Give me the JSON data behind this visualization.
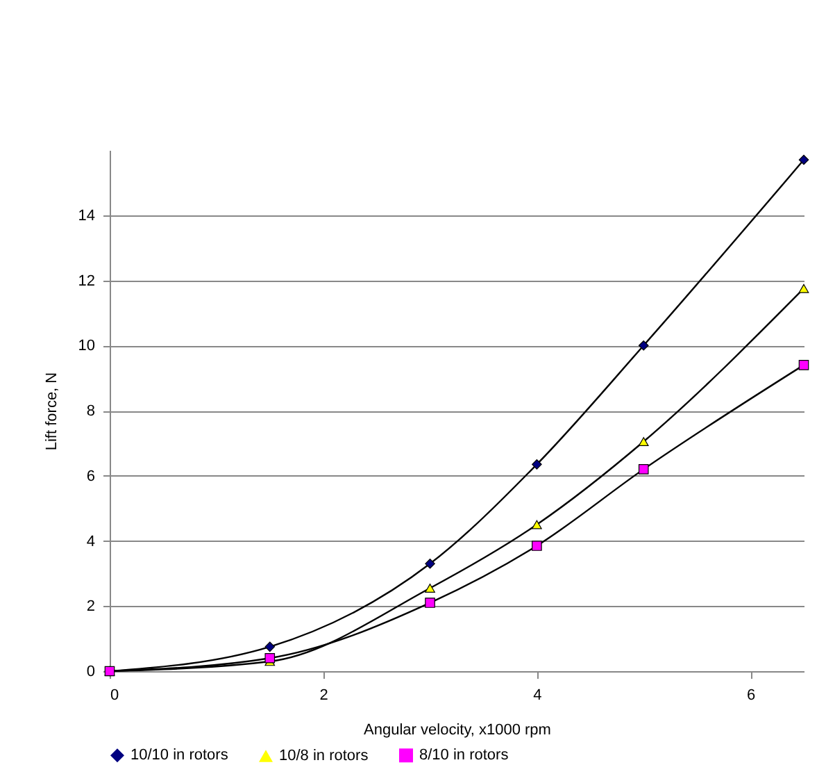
{
  "chart_data": {
    "type": "line",
    "xlabel": "Angular velocity, x1000 rpm",
    "ylabel": "Lift force, N",
    "xlim": [
      0,
      6.5
    ],
    "xticks": [
      0,
      2,
      4,
      6
    ],
    "ylim": [
      0,
      16
    ],
    "yticks": [
      0,
      2,
      4,
      6,
      8,
      10,
      12,
      14
    ],
    "grid": "y",
    "legend": "bottom",
    "series": [
      {
        "name": "10/10 in rotors",
        "color": "#000080",
        "marker": "diamond",
        "x": [
          0,
          1.5,
          3,
          4,
          5,
          6.5
        ],
        "values": [
          0,
          0.75,
          3.3,
          6.35,
          10,
          15.7
        ]
      },
      {
        "name": "10/8 in rotors",
        "color": "#ffff00",
        "marker": "triangle",
        "x": [
          0,
          1.5,
          3,
          4,
          5,
          6.5
        ],
        "values": [
          0,
          0.3,
          2.55,
          4.5,
          7.05,
          11.75
        ]
      },
      {
        "name": "8/10 in rotors",
        "color": "#ff00ff",
        "marker": "square",
        "x": [
          0,
          1.5,
          3,
          4,
          5,
          6.5
        ],
        "values": [
          0,
          0.4,
          2.1,
          3.85,
          6.2,
          9.4
        ]
      }
    ]
  }
}
